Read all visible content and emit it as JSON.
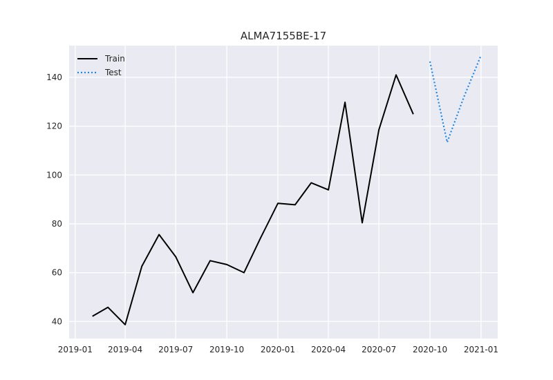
{
  "chart_data": {
    "type": "line",
    "title": "ALMA7155BE-17",
    "xlabel": "",
    "ylabel": "",
    "grid": true,
    "legend_position": "top-left",
    "x_ticks": [
      "2019-01",
      "2019-04",
      "2019-07",
      "2019-10",
      "2020-01",
      "2020-04",
      "2020-07",
      "2020-10",
      "2021-01"
    ],
    "y_ticks": [
      40,
      60,
      80,
      100,
      120,
      140
    ],
    "xlim": [
      "2018-12-21",
      "2021-01-31"
    ],
    "ylim": [
      33,
      153
    ],
    "series": [
      {
        "name": "Train",
        "color": "#000000",
        "style": "solid",
        "x": [
          "2019-02-01",
          "2019-03-01",
          "2019-04-01",
          "2019-05-01",
          "2019-06-01",
          "2019-07-01",
          "2019-08-01",
          "2019-09-01",
          "2019-10-01",
          "2019-11-01",
          "2019-12-01",
          "2020-01-01",
          "2020-02-01",
          "2020-03-01",
          "2020-04-01",
          "2020-05-01",
          "2020-06-01",
          "2020-07-01",
          "2020-08-01",
          "2020-09-01"
        ],
        "y": [
          42.1,
          45.8,
          38.7,
          62.6,
          75.6,
          66.5,
          51.8,
          64.9,
          63.3,
          60.0,
          74.3,
          88.4,
          87.8,
          96.8,
          93.9,
          129.8,
          80.4,
          118.5,
          141.0,
          124.9
        ]
      },
      {
        "name": "Test",
        "color": "#1e88e5",
        "style": "dotted",
        "x": [
          "2020-10-01",
          "2020-11-01",
          "2020-12-01",
          "2021-01-01"
        ],
        "y": [
          146.5,
          113.4,
          131.9,
          149.0
        ]
      }
    ]
  }
}
